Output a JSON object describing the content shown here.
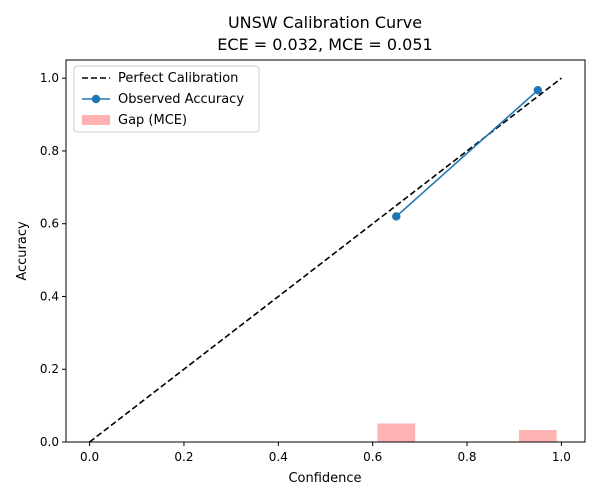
{
  "chart_data": {
    "type": "line",
    "title": "UNSW Calibration Curve",
    "subtitle": "ECE = 0.032, MCE = 0.051",
    "xlabel": "Confidence",
    "ylabel": "Accuracy",
    "xlim": [
      -0.05,
      1.05
    ],
    "ylim": [
      0,
      1.05
    ],
    "xticks": [
      "0.0",
      "0.2",
      "0.4",
      "0.6",
      "0.8",
      "1.0"
    ],
    "yticks": [
      "0.0",
      "0.2",
      "0.4",
      "0.6",
      "0.8",
      "1.0"
    ],
    "grid": false,
    "legend_position": "top-left",
    "series": [
      {
        "name": "Perfect Calibration",
        "kind": "line",
        "style": "dashed",
        "color": "#000000",
        "x": [
          0.0,
          1.0
        ],
        "y": [
          0.0,
          1.0
        ]
      },
      {
        "name": "Observed Accuracy",
        "kind": "line-markers",
        "color": "#1f77b4",
        "x": [
          0.65,
          0.95
        ],
        "y": [
          0.62,
          0.967
        ]
      },
      {
        "name": "Gap (MCE)",
        "kind": "bar",
        "color": "#ffb3b3",
        "bar_width": 0.08,
        "x": [
          0.65,
          0.95
        ],
        "y": [
          0.051,
          0.033
        ]
      }
    ]
  }
}
